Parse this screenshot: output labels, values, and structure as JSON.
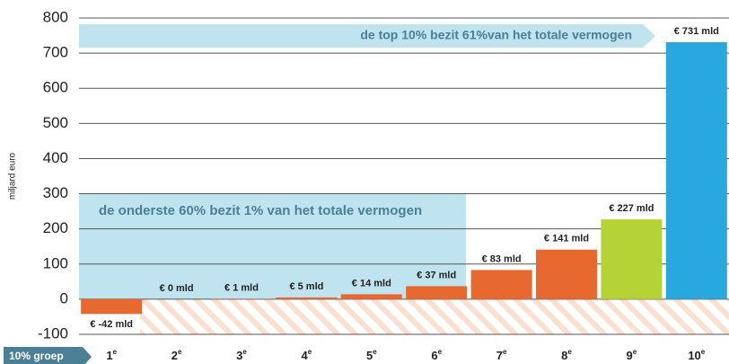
{
  "chart_data": {
    "type": "bar",
    "y_label": "miljard euro",
    "x_label": "10% groep",
    "categories": [
      "1",
      "2",
      "3",
      "4",
      "5",
      "6",
      "7",
      "8",
      "9",
      "10"
    ],
    "category_suffix": "e",
    "values": [
      -42,
      0,
      1,
      5,
      14,
      37,
      83,
      141,
      227,
      731
    ],
    "value_labels": [
      "€ -42 mld",
      "€ 0 mld",
      "€ 1 mld",
      "€ 5 mld",
      "€ 14 mld",
      "€ 37 mld",
      "€ 83 mld",
      "€ 141 mld",
      "€ 227 mld",
      "€ 731 mld"
    ],
    "colors": [
      "#e8692f",
      "#e8692f",
      "#e8692f",
      "#e8692f",
      "#e8692f",
      "#e8692f",
      "#e8692f",
      "#e8692f",
      "#b5d334",
      "#29a7df"
    ],
    "annotations": [
      "de top 10% bezit 61%van het totale vermogen",
      "de onderste 60% bezit 1% van het totale vermogen"
    ],
    "ylim": [
      -100,
      800
    ],
    "yticks": [
      -100,
      0,
      100,
      200,
      300,
      400,
      500,
      600,
      700,
      800
    ],
    "grid": true
  }
}
